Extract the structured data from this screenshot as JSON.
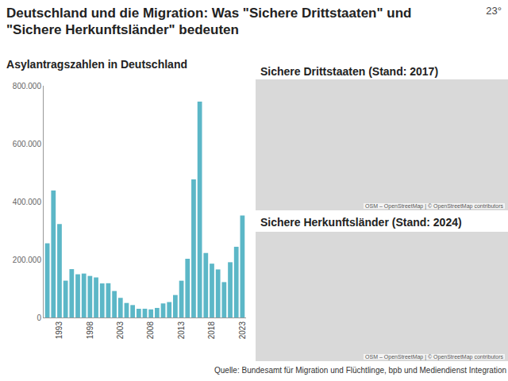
{
  "title": "Deutschland und die Migration: Was \"Sichere Drittstaaten\" und \"Sichere Herkunftsländer\" bedeuten",
  "logo": "23°",
  "source": "Quelle:  Bundesamt für Migration und Flüchtlinge, bpb und Mediendienst Integration",
  "chart_data": {
    "type": "bar",
    "title": "Asylantragszahlen in Deutschland",
    "categories": [
      null,
      null,
      "1993",
      null,
      null,
      null,
      null,
      "1998",
      null,
      null,
      null,
      null,
      "2003",
      null,
      null,
      null,
      null,
      "2008",
      null,
      null,
      null,
      null,
      "2013",
      null,
      null,
      null,
      null,
      "2018",
      null,
      null,
      null,
      null,
      "2023"
    ],
    "values": [
      256112,
      438191,
      322599,
      127210,
      166951,
      149193,
      151700,
      143429,
      138319,
      117648,
      118306,
      91471,
      67848,
      50152,
      42908,
      30100,
      30303,
      28018,
      33033,
      48589,
      53347,
      77651,
      127023,
      202834,
      476649,
      745545,
      222683,
      185853,
      165938,
      122170,
      190816,
      244132,
      351915
    ],
    "color": "#5cb7c7",
    "ylim": [
      0,
      800000
    ],
    "yticks": [
      0,
      {
        "value": 200000,
        "label": "200.000"
      },
      {
        "value": 400000,
        "label": "400.000"
      },
      {
        "value": 600000,
        "label": "600.000"
      },
      {
        "value": 800000,
        "label": "800.000"
      }
    ],
    "grid": false
  },
  "maps": [
    {
      "title": "Sichere Drittstaaten (Stand: 2017)",
      "attribution": "OSM – OpenStreetMap | © OpenStreetMap contributors"
    },
    {
      "title": "Sichere Herkunftsländer (Stand: 2024)",
      "attribution": "OSM – OpenStreetMap | © OpenStreetMap contributors"
    }
  ]
}
